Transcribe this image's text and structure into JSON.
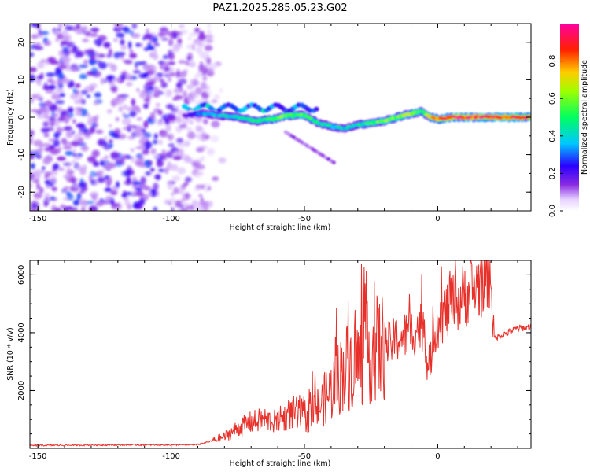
{
  "title": "PAZ1.2025.285.05.23.G02",
  "colors": {
    "snr_line": "#e8302a",
    "axes": "#000000"
  },
  "chart_data": [
    {
      "type": "heatmap",
      "name": "spectrogram",
      "xlabel": "Height of straight line (km)",
      "ylabel": "Frequency (Hz)",
      "xlim": [
        -153,
        35
      ],
      "ylim": [
        -25,
        25
      ],
      "xticks": [
        -150,
        -100,
        -50,
        0
      ],
      "xtick_labels": [
        "-150",
        "-100",
        "-50",
        "0"
      ],
      "yticks": [
        -20,
        -10,
        0,
        10,
        20
      ],
      "ytick_labels": [
        "-20",
        "-10",
        "0",
        "10",
        "20"
      ],
      "colorbar": {
        "label": "Normalized spectral amplitude",
        "range": [
          0.0,
          1.0
        ],
        "ticks": [
          0.0,
          0.2,
          0.4,
          0.6,
          0.8
        ],
        "tick_labels": [
          "0.0",
          "0.2",
          "0.4",
          "0.6",
          "0.8"
        ],
        "colormap": "rainbow (white-violet-blue-cyan-green-yellow-red-magenta)"
      },
      "ridge": {
        "description": "dominant frequency track vs height",
        "x": [
          -95,
          -88,
          -82,
          -75,
          -68,
          -62,
          -56,
          -50,
          -45,
          -40,
          -35,
          -30,
          -25,
          -20,
          -15,
          -10,
          -6,
          -3,
          0,
          5,
          15,
          25,
          35
        ],
        "freq": [
          0.5,
          1.0,
          0.5,
          0.0,
          -1.0,
          -0.5,
          0.5,
          0.5,
          -1.5,
          -2.5,
          -3.0,
          -2.0,
          -1.5,
          -1.0,
          0.0,
          1.0,
          1.5,
          0.0,
          -0.5,
          0.0,
          0.0,
          0.0,
          0.0
        ],
        "amplitude": [
          0.15,
          0.35,
          0.4,
          0.45,
          0.5,
          0.55,
          0.6,
          0.55,
          0.45,
          0.45,
          0.4,
          0.45,
          0.55,
          0.6,
          0.65,
          0.7,
          0.5,
          0.75,
          0.85,
          0.95,
          0.95,
          0.9,
          0.9
        ]
      },
      "noise_region": [
        -153,
        -85
      ]
    },
    {
      "type": "line",
      "name": "snr",
      "xlabel": "Height of straight line (km)",
      "ylabel": "SNR (10 * v/v)",
      "xlim": [
        -153,
        35
      ],
      "ylim": [
        0,
        6500
      ],
      "xticks": [
        -150,
        -100,
        -50,
        0
      ],
      "xtick_labels": [
        "-150",
        "-100",
        "-50",
        "0"
      ],
      "yticks": [
        2000,
        4000,
        6000
      ],
      "ytick_labels": [
        "2000",
        "4000",
        "6000"
      ],
      "series": [
        {
          "name": "SNR",
          "x": [
            -153,
            -120,
            -100,
            -90,
            -85,
            -80,
            -75,
            -70,
            -65,
            -60,
            -55,
            -50,
            -45,
            -40,
            -35,
            -30,
            -25,
            -20,
            -15,
            -10,
            -5,
            -4,
            -3,
            -2,
            0,
            5,
            10,
            15,
            20,
            21,
            25,
            30,
            35
          ],
          "y": [
            100,
            120,
            120,
            130,
            250,
            400,
            700,
            900,
            1000,
            900,
            1200,
            1100,
            1400,
            2000,
            2800,
            3000,
            3400,
            3500,
            3800,
            4000,
            4300,
            3000,
            2500,
            3800,
            4400,
            4900,
            5300,
            5600,
            6200,
            3800,
            3950,
            4150,
            4200
          ]
        }
      ]
    }
  ]
}
